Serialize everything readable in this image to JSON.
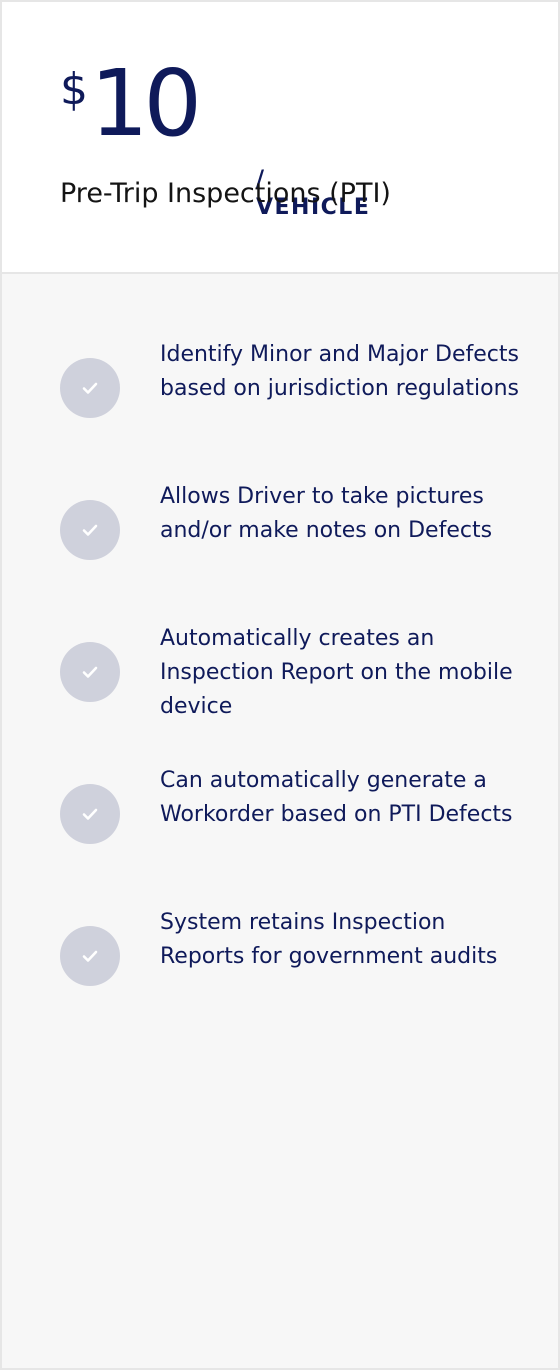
{
  "pricing": {
    "currency": "$",
    "amount": "10",
    "unit": "/ VEHICLE",
    "plan_name": "Pre-Trip Inspections (PTI)"
  },
  "features": [
    "Identify Minor and Major Defects based on jurisdiction regulations",
    "Allows Driver to take pictures and/or make notes on Defects",
    "Automatically creates an Inspection Report on the mobile device",
    "Can automatically generate a Workorder based on PTI Defects",
    "System retains Inspection Reports for government audits"
  ],
  "icons": {
    "feature_icon": "check-icon"
  },
  "colors": {
    "primary_text": "#0f1a5a",
    "check_circle": "#cfd1dc",
    "panel_background": "#f7f7f7",
    "header_background": "#ffffff"
  }
}
